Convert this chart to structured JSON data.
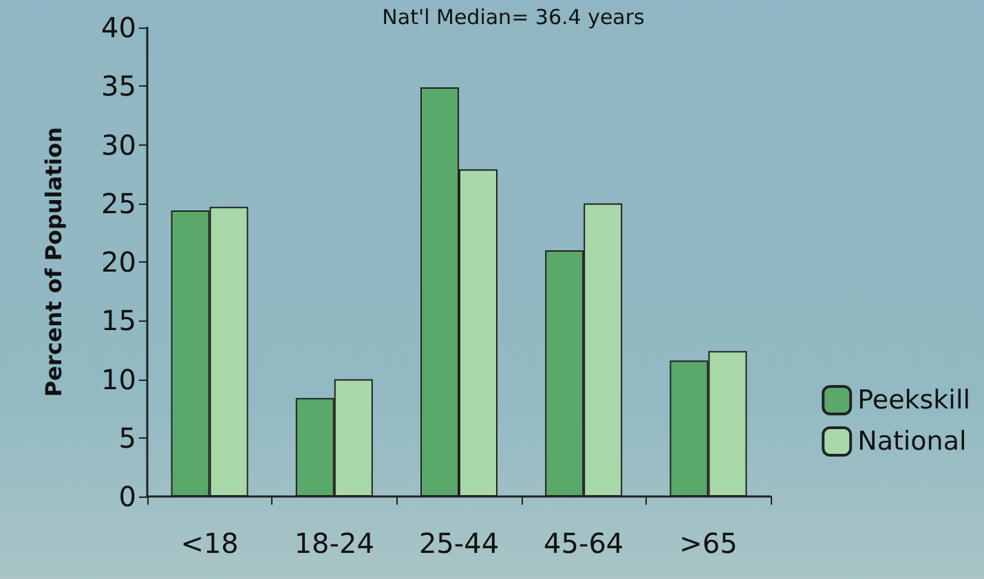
{
  "chart_data": {
    "type": "bar",
    "title": "Nat'l Median= 36.4 years",
    "ylabel": "Percent of Population",
    "categories": [
      "<18",
      "18-24",
      "25-44",
      "45-64",
      ">65"
    ],
    "series": [
      {
        "name": "Peekskill",
        "color": "#5aa86a",
        "values": [
          24.4,
          8.4,
          34.9,
          21,
          11.6
        ]
      },
      {
        "name": "National",
        "color": "#a8d8a8",
        "values": [
          24.7,
          10,
          27.9,
          25,
          12.4
        ]
      }
    ],
    "ylim": [
      0,
      40
    ],
    "yticks": [
      0,
      5,
      10,
      15,
      20,
      25,
      30,
      35,
      40
    ],
    "grid": false,
    "legend": "right"
  }
}
